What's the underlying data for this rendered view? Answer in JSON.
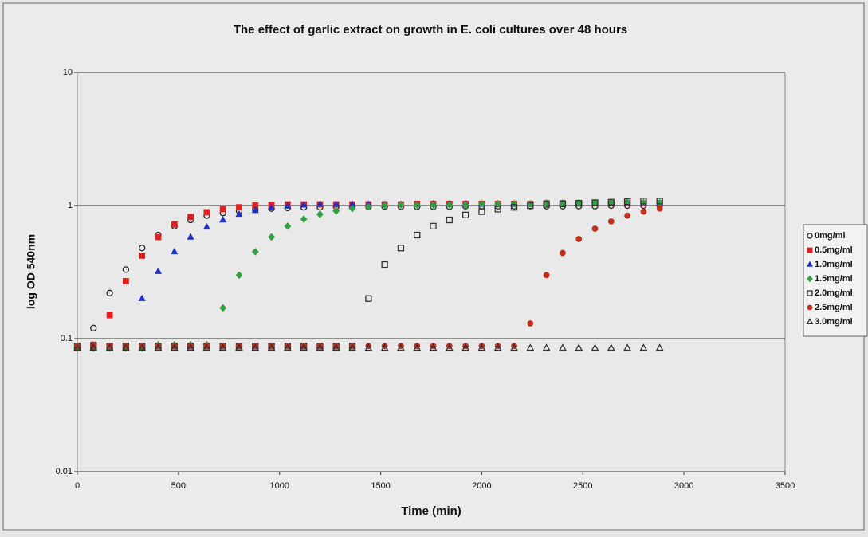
{
  "chart_data": {
    "type": "scatter",
    "title": "The effect of garlic extract on growth in E. coli cultures over 48 hours",
    "xlabel": "Time (min)",
    "ylabel": "log OD 540nm",
    "xlim": [
      0,
      3500
    ],
    "xticks": [
      0,
      500,
      1000,
      1500,
      2000,
      2500,
      3000,
      3500
    ],
    "ylim": [
      0.01,
      10
    ],
    "yticks": [
      0.01,
      0.1,
      1,
      10
    ],
    "ylog": true,
    "grid": true,
    "x": [
      0,
      80,
      160,
      240,
      320,
      400,
      480,
      560,
      640,
      720,
      800,
      880,
      960,
      1040,
      1120,
      1200,
      1280,
      1360,
      1440,
      1520,
      1600,
      1680,
      1760,
      1840,
      1920,
      2000,
      2080,
      2160,
      2240,
      2320,
      2400,
      2480,
      2560,
      2640,
      2720,
      2800,
      2880
    ],
    "series": [
      {
        "name": "0mg/ml",
        "color": "#222222",
        "marker": "circle-open",
        "values": [
          0.085,
          0.12,
          0.22,
          0.33,
          0.48,
          0.6,
          0.7,
          0.78,
          0.84,
          0.88,
          0.91,
          0.93,
          0.95,
          0.96,
          0.97,
          0.97,
          0.98,
          0.98,
          0.98,
          0.98,
          0.98,
          0.98,
          0.98,
          0.98,
          0.99,
          0.99,
          0.99,
          0.99,
          0.99,
          0.99,
          0.99,
          0.99,
          0.99,
          1.0,
          1.0,
          1.0,
          1.0
        ]
      },
      {
        "name": "0.5mg/ml",
        "color": "#e02020",
        "marker": "square",
        "values": [
          0.085,
          0.09,
          0.15,
          0.27,
          0.42,
          0.58,
          0.72,
          0.82,
          0.89,
          0.94,
          0.97,
          1.0,
          1.01,
          1.02,
          1.02,
          1.02,
          1.02,
          1.02,
          1.02,
          1.02,
          1.02,
          1.03,
          1.03,
          1.03,
          1.03,
          1.03,
          1.03,
          1.03,
          1.03,
          1.04,
          1.04,
          1.04,
          1.04,
          1.04,
          1.04,
          1.04,
          1.04
        ]
      },
      {
        "name": "1.0mg/ml",
        "color": "#2030c0",
        "marker": "triangle",
        "values": [
          0.085,
          0.085,
          0.085,
          0.085,
          0.2,
          0.32,
          0.45,
          0.58,
          0.69,
          0.78,
          0.86,
          0.92,
          0.96,
          0.99,
          1.01,
          1.02,
          1.02,
          1.02,
          1.02,
          1.02,
          1.02,
          1.02,
          1.03,
          1.03,
          1.03,
          1.03,
          1.03,
          1.03,
          1.03,
          1.04,
          1.04,
          1.04,
          1.04,
          1.04,
          1.04,
          1.04,
          1.04
        ]
      },
      {
        "name": "1.5mg/ml",
        "color": "#30a040",
        "marker": "diamond",
        "values": [
          0.085,
          0.085,
          0.085,
          0.085,
          0.085,
          0.09,
          0.09,
          0.09,
          0.09,
          0.17,
          0.3,
          0.45,
          0.58,
          0.7,
          0.79,
          0.86,
          0.91,
          0.95,
          0.98,
          1.0,
          1.01,
          1.01,
          1.01,
          1.01,
          1.01,
          1.03,
          1.03,
          1.03,
          1.03,
          1.03,
          1.03,
          1.05,
          1.05,
          1.05,
          1.05,
          1.05,
          1.05
        ]
      },
      {
        "name": "2.0mg/ml",
        "color": "#333333",
        "marker": "square-open",
        "values": [
          0.088,
          0.088,
          0.088,
          0.088,
          0.088,
          0.088,
          0.088,
          0.088,
          0.088,
          0.088,
          0.088,
          0.088,
          0.088,
          0.088,
          0.088,
          0.088,
          0.088,
          0.088,
          0.2,
          0.36,
          0.48,
          0.6,
          0.7,
          0.78,
          0.85,
          0.9,
          0.94,
          0.97,
          1.0,
          1.02,
          1.03,
          1.04,
          1.05,
          1.06,
          1.07,
          1.08,
          1.08
        ]
      },
      {
        "name": "2.5mg/ml",
        "color": "#c03020",
        "marker": "circle",
        "values": [
          0.088,
          0.088,
          0.088,
          0.088,
          0.088,
          0.088,
          0.088,
          0.088,
          0.088,
          0.088,
          0.088,
          0.088,
          0.088,
          0.088,
          0.088,
          0.088,
          0.088,
          0.088,
          0.088,
          0.088,
          0.088,
          0.088,
          0.088,
          0.088,
          0.088,
          0.088,
          0.088,
          0.088,
          0.13,
          0.3,
          0.44,
          0.56,
          0.67,
          0.76,
          0.84,
          0.9,
          0.95
        ]
      },
      {
        "name": "3.0mg/ml",
        "color": "#333333",
        "marker": "triangle-open",
        "values": [
          0.085,
          0.085,
          0.085,
          0.085,
          0.085,
          0.085,
          0.085,
          0.085,
          0.085,
          0.085,
          0.085,
          0.085,
          0.085,
          0.085,
          0.085,
          0.085,
          0.085,
          0.085,
          0.085,
          0.085,
          0.085,
          0.085,
          0.085,
          0.085,
          0.085,
          0.085,
          0.085,
          0.085,
          0.085,
          0.085,
          0.085,
          0.085,
          0.085,
          0.085,
          0.085,
          0.085,
          0.085
        ]
      }
    ]
  }
}
